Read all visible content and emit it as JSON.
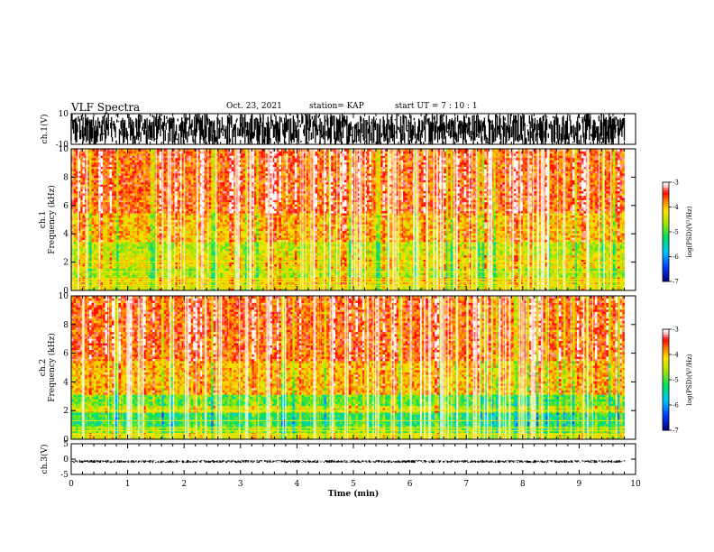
{
  "header": {
    "title": "VLF Spectra",
    "date": "Oct. 23, 2021",
    "station": "station= KAP",
    "start": "start  UT =   7 : 10 : 1"
  },
  "colors": {
    "axis": "#000000",
    "spectrogram_background": "#ffffff",
    "colormap": [
      "#00008b",
      "#0050ff",
      "#00c8ff",
      "#00e070",
      "#a0e000",
      "#ffe000",
      "#ff8000",
      "#ff0000",
      "#ffd0d0",
      "#ffffff"
    ]
  },
  "chart_data": [
    {
      "type": "line",
      "name": "ch1-waveform",
      "ylabel": "ch.1(V)",
      "ylim": [
        -10,
        10
      ],
      "yticks": [
        {
          "value": 10,
          "label": "10"
        },
        {
          "value": -10,
          "label": "-10"
        }
      ],
      "xlim": [
        0,
        10
      ],
      "signal_range": [
        -10,
        10
      ],
      "signal_duration": 9.8
    },
    {
      "type": "heatmap",
      "name": "ch1-spectrogram",
      "ylabel": "ch.1\nFrequency  (kHz)",
      "xlim": [
        0,
        10
      ],
      "ylim": [
        0,
        10
      ],
      "yticks": [
        {
          "value": 0,
          "label": "0"
        },
        {
          "value": 2,
          "label": "2"
        },
        {
          "value": 4,
          "label": "4"
        },
        {
          "value": 6,
          "label": "6"
        },
        {
          "value": 8,
          "label": "8"
        },
        {
          "value": 10,
          "label": "10"
        }
      ],
      "data_duration": 9.8,
      "colorbar": {
        "label": "log(PSD)(V²/Hz)",
        "range": [
          -7,
          -3
        ],
        "ticks": [
          "-3",
          "-4",
          "-5",
          "-6",
          "-7"
        ]
      },
      "bands": [
        {
          "f_low": 0.0,
          "f_high": 0.5,
          "level": -4.4
        },
        {
          "f_low": 0.5,
          "f_high": 1.0,
          "level": -4.2
        },
        {
          "f_low": 1.0,
          "f_high": 1.6,
          "level": -4.6
        },
        {
          "f_low": 1.6,
          "f_high": 2.5,
          "level": -4.3
        },
        {
          "f_low": 2.5,
          "f_high": 3.5,
          "level": -4.5
        },
        {
          "f_low": 3.5,
          "f_high": 5.5,
          "level": -4.0
        },
        {
          "f_low": 5.5,
          "f_high": 10.0,
          "level": -3.6
        }
      ],
      "tones_khz": [
        0.2,
        0.35,
        0.6,
        0.8,
        1.3,
        2.0
      ]
    },
    {
      "type": "heatmap",
      "name": "ch2-spectrogram",
      "ylabel": "ch.2\nFrequency  (kHz)",
      "xlim": [
        0,
        10
      ],
      "ylim": [
        0,
        10
      ],
      "yticks": [
        {
          "value": 0,
          "label": "0"
        },
        {
          "value": 2,
          "label": "2"
        },
        {
          "value": 4,
          "label": "4"
        },
        {
          "value": 6,
          "label": "6"
        },
        {
          "value": 8,
          "label": "8"
        },
        {
          "value": 10,
          "label": "10"
        }
      ],
      "data_duration": 9.8,
      "colorbar": {
        "label": "log(PSD)(V²/Hz)",
        "range": [
          -7,
          -3
        ],
        "ticks": [
          "-3",
          "-4",
          "-5",
          "-6",
          "-7"
        ]
      },
      "bands": [
        {
          "f_low": 0.0,
          "f_high": 0.5,
          "level": -4.4
        },
        {
          "f_low": 0.5,
          "f_high": 1.0,
          "level": -4.8
        },
        {
          "f_low": 1.0,
          "f_high": 1.8,
          "level": -5.2
        },
        {
          "f_low": 1.8,
          "f_high": 2.4,
          "level": -4.4
        },
        {
          "f_low": 2.4,
          "f_high": 3.2,
          "level": -4.9
        },
        {
          "f_low": 3.2,
          "f_high": 5.5,
          "level": -4.0
        },
        {
          "f_low": 5.5,
          "f_high": 10.0,
          "level": -3.6
        }
      ],
      "tones_khz": [
        0.2,
        0.35,
        0.6,
        0.8,
        1.3,
        2.0
      ]
    },
    {
      "type": "line",
      "name": "ch3-waveform",
      "ylabel": "ch.3(V)",
      "ylim": [
        -5,
        5
      ],
      "yticks": [
        {
          "value": 5,
          "label": "5"
        },
        {
          "value": 0,
          "label": "0"
        },
        {
          "value": -5,
          "label": "-5"
        }
      ],
      "xlim": [
        0,
        10
      ],
      "signal_range": [
        -1.2,
        -0.3
      ],
      "signal_duration": 9.8
    }
  ],
  "xaxis": {
    "label": "Time  (min)",
    "range": [
      0,
      10
    ],
    "ticks": [
      {
        "value": 0,
        "label": "0"
      },
      {
        "value": 1,
        "label": "1"
      },
      {
        "value": 2,
        "label": "2"
      },
      {
        "value": 3,
        "label": "3"
      },
      {
        "value": 4,
        "label": "4"
      },
      {
        "value": 5,
        "label": "5"
      },
      {
        "value": 6,
        "label": "6"
      },
      {
        "value": 7,
        "label": "7"
      },
      {
        "value": 8,
        "label": "8"
      },
      {
        "value": 9,
        "label": "9"
      },
      {
        "value": 10,
        "label": "10"
      }
    ],
    "minor_step": 0.2
  }
}
